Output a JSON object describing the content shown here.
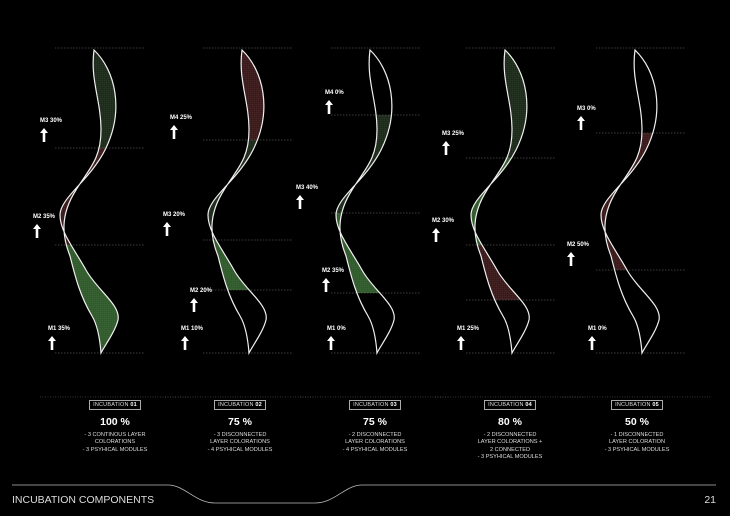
{
  "footer": {
    "title": "INCUBATION COMPONENTS",
    "page_number": "21"
  },
  "colors": {
    "green": "#2f5a2a",
    "dark_green": "#1a2a18",
    "red": "#3a1818",
    "outline": "#f0f0f0"
  },
  "incubations": [
    {
      "tag": "INCUBATION",
      "num": "01",
      "percent": "100 %",
      "description": "- 3 CONTINOUS LAYER\nCOLORATIONS\n- 3 PSYHICAL MODULES",
      "modules": [
        {
          "label": "M3 30%",
          "color": "dark_green"
        },
        {
          "label": "M2 35%",
          "color": "red"
        },
        {
          "label": "M1 35%",
          "color": "green"
        }
      ]
    },
    {
      "tag": "INCUBATION",
      "num": "02",
      "percent": "75 %",
      "description": "- 3 DISCONNECTED\nLAYER COLORATIONS\n- 4 PSYHICAL MODULES",
      "modules": [
        {
          "label": "M4 25%",
          "color": "red"
        },
        {
          "label": "M3 20%",
          "color": "dark_green"
        },
        {
          "label": "M2 20%",
          "color": "green"
        },
        {
          "label": "M1 10%",
          "color": "none"
        }
      ]
    },
    {
      "tag": "INCUBATION",
      "num": "03",
      "percent": "75 %",
      "description": "- 2 DISCONNECTED\nLAYER COLORATIONS\n- 4 PSYHICAL MODULES",
      "modules": [
        {
          "label": "M4 0%",
          "color": "none"
        },
        {
          "label": "M3 40%",
          "color": "dark_green"
        },
        {
          "label": "M2 35%",
          "color": "green"
        },
        {
          "label": "M1 0%",
          "color": "none"
        }
      ]
    },
    {
      "tag": "INCUBATION",
      "num": "04",
      "percent": "80 %",
      "description": "- 2 DISCONNECTED\nLAYER COLORATIONS  +\n2 CONNECTED\n- 3 PSYHICAL MODULES",
      "modules": [
        {
          "label": "M3 25%",
          "color": "dark_green"
        },
        {
          "label": "M2 30%",
          "color": "green"
        },
        {
          "label": "M1 25%",
          "color": "red"
        }
      ]
    },
    {
      "tag": "INCUBATION",
      "num": "05",
      "percent": "50 %",
      "description": "- 1 DISCONNECTED\nLAYER COLORATION\n- 3 PSYHICAL MODULES",
      "modules": [
        {
          "label": "M3 0%",
          "color": "none"
        },
        {
          "label": "M2 50%",
          "color": "red"
        },
        {
          "label": "M1 0%",
          "color": "none"
        }
      ]
    }
  ]
}
